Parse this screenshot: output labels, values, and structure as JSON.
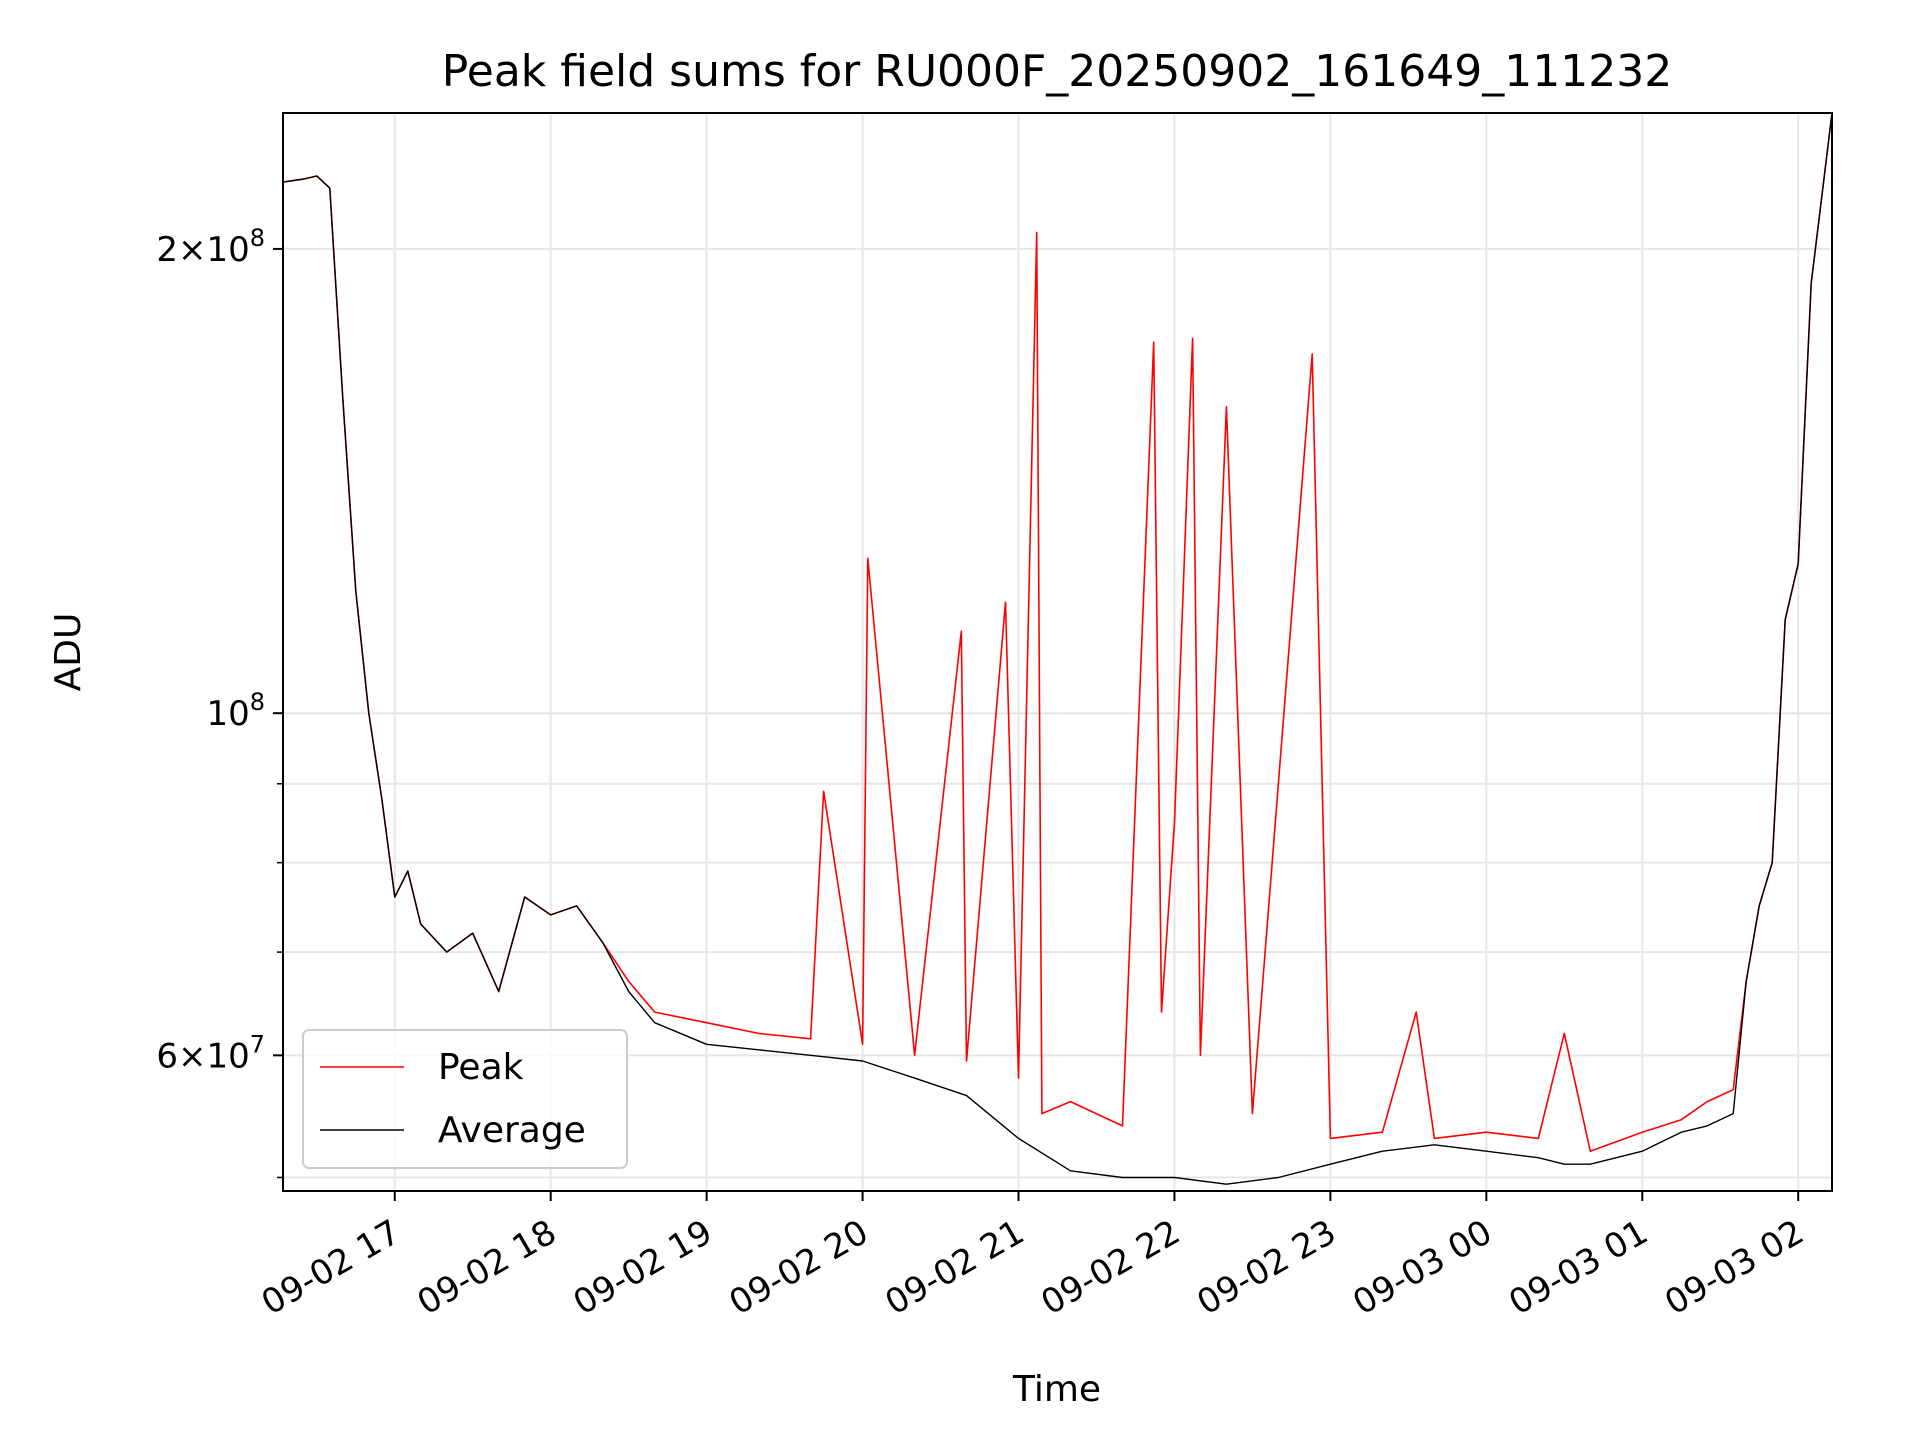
{
  "chart_data": {
    "type": "line",
    "title": "Peak field sums for RU000F_20250902_161649_111232",
    "xlabel": "Time",
    "ylabel": "ADU",
    "y_scale": "log",
    "ylim": [
      49000000,
      245000000
    ],
    "xlim": [
      "2025-09-02 16:17",
      "2025-09-03 02:13"
    ],
    "grid": true,
    "legend": "lower-left",
    "x_ticks": [
      "09-02 17",
      "09-02 18",
      "09-02 19",
      "09-02 20",
      "09-02 21",
      "09-02 22",
      "09-02 23",
      "09-03 00",
      "09-03 01",
      "09-03 02"
    ],
    "x_tick_times": [
      "2025-09-02 17:00",
      "2025-09-02 18:00",
      "2025-09-02 19:00",
      "2025-09-02 20:00",
      "2025-09-02 21:00",
      "2025-09-02 22:00",
      "2025-09-02 23:00",
      "2025-09-03 00:00",
      "2025-09-03 01:00",
      "2025-09-03 02:00"
    ],
    "y_major_ticks": [
      {
        "value": 60000000,
        "mantissa": "6",
        "exponent": "7"
      },
      {
        "value": 100000000,
        "mantissa": "",
        "exponent": "8"
      },
      {
        "value": 200000000,
        "mantissa": "2",
        "exponent": "8"
      }
    ],
    "y_minor_ticks": [
      50000000,
      70000000,
      80000000,
      90000000
    ],
    "series": [
      {
        "name": "Peak",
        "color": "#ff0000",
        "x": [
          "2025-09-02 16:17",
          "2025-09-02 16:25",
          "2025-09-02 16:30",
          "2025-09-02 16:35",
          "2025-09-02 16:40",
          "2025-09-02 16:45",
          "2025-09-02 16:50",
          "2025-09-02 16:55",
          "2025-09-02 17:00",
          "2025-09-02 17:05",
          "2025-09-02 17:10",
          "2025-09-02 17:20",
          "2025-09-02 17:30",
          "2025-09-02 17:40",
          "2025-09-02 17:50",
          "2025-09-02 18:00",
          "2025-09-02 18:10",
          "2025-09-02 18:20",
          "2025-09-02 18:30",
          "2025-09-02 18:40",
          "2025-09-02 19:00",
          "2025-09-02 19:20",
          "2025-09-02 19:40",
          "2025-09-02 19:45",
          "2025-09-02 20:00",
          "2025-09-02 20:02",
          "2025-09-02 20:20",
          "2025-09-02 20:38",
          "2025-09-02 20:40",
          "2025-09-02 20:55",
          "2025-09-02 21:00",
          "2025-09-02 21:07",
          "2025-09-02 21:09",
          "2025-09-02 21:20",
          "2025-09-02 21:40",
          "2025-09-02 21:52",
          "2025-09-02 21:55",
          "2025-09-02 22:00",
          "2025-09-02 22:07",
          "2025-09-02 22:10",
          "2025-09-02 22:20",
          "2025-09-02 22:30",
          "2025-09-02 22:53",
          "2025-09-02 23:00",
          "2025-09-02 23:20",
          "2025-09-02 23:33",
          "2025-09-02 23:40",
          "2025-09-03 00:00",
          "2025-09-03 00:20",
          "2025-09-03 00:30",
          "2025-09-03 00:40",
          "2025-09-03 01:00",
          "2025-09-03 01:15",
          "2025-09-03 01:25",
          "2025-09-03 01:35",
          "2025-09-03 01:40",
          "2025-09-03 01:45",
          "2025-09-03 01:50",
          "2025-09-03 01:55",
          "2025-09-03 02:00",
          "2025-09-03 02:05",
          "2025-09-03 02:13"
        ],
        "y": [
          221000000,
          222000000,
          223000000,
          219000000,
          160000000,
          120000000,
          100000000,
          88000000,
          76000000,
          79000000,
          73000000,
          70000000,
          72000000,
          66000000,
          76000000,
          74000000,
          75000000,
          71000000,
          67000000,
          64000000,
          63000000,
          62000000,
          61500000,
          89000000,
          61000000,
          126000000,
          60000000,
          113000000,
          59500000,
          118000000,
          58000000,
          205000000,
          55000000,
          56000000,
          54000000,
          174000000,
          64000000,
          85000000,
          175000000,
          60000000,
          158000000,
          55000000,
          171000000,
          53000000,
          53500000,
          64000000,
          53000000,
          53500000,
          53000000,
          62000000,
          52000000,
          53500000,
          54500000,
          56000000,
          57000000,
          67000000,
          75000000,
          80000000,
          115000000,
          125000000,
          190000000,
          245000000
        ]
      },
      {
        "name": "Average",
        "color": "#000000",
        "x": [
          "2025-09-02 16:17",
          "2025-09-02 16:25",
          "2025-09-02 16:30",
          "2025-09-02 16:35",
          "2025-09-02 16:40",
          "2025-09-02 16:45",
          "2025-09-02 16:50",
          "2025-09-02 16:55",
          "2025-09-02 17:00",
          "2025-09-02 17:05",
          "2025-09-02 17:10",
          "2025-09-02 17:20",
          "2025-09-02 17:30",
          "2025-09-02 17:40",
          "2025-09-02 17:50",
          "2025-09-02 18:00",
          "2025-09-02 18:10",
          "2025-09-02 18:20",
          "2025-09-02 18:30",
          "2025-09-02 18:40",
          "2025-09-02 19:00",
          "2025-09-02 19:20",
          "2025-09-02 19:40",
          "2025-09-02 20:00",
          "2025-09-02 20:20",
          "2025-09-02 20:40",
          "2025-09-02 21:00",
          "2025-09-02 21:20",
          "2025-09-02 21:40",
          "2025-09-02 22:00",
          "2025-09-02 22:20",
          "2025-09-02 22:40",
          "2025-09-02 23:00",
          "2025-09-02 23:20",
          "2025-09-02 23:40",
          "2025-09-03 00:00",
          "2025-09-03 00:20",
          "2025-09-03 00:30",
          "2025-09-03 00:40",
          "2025-09-03 01:00",
          "2025-09-03 01:15",
          "2025-09-03 01:25",
          "2025-09-03 01:35",
          "2025-09-03 01:40",
          "2025-09-03 01:45",
          "2025-09-03 01:50",
          "2025-09-03 01:55",
          "2025-09-03 02:00",
          "2025-09-03 02:05",
          "2025-09-03 02:13"
        ],
        "y": [
          221000000,
          222000000,
          223000000,
          219000000,
          160000000,
          120000000,
          100000000,
          88000000,
          76000000,
          79000000,
          73000000,
          70000000,
          72000000,
          66000000,
          76000000,
          74000000,
          75000000,
          71000000,
          66000000,
          63000000,
          61000000,
          60500000,
          60000000,
          59500000,
          58000000,
          56500000,
          53000000,
          50500000,
          50000000,
          50000000,
          49500000,
          50000000,
          51000000,
          52000000,
          52500000,
          52000000,
          51500000,
          51000000,
          51000000,
          52000000,
          53500000,
          54000000,
          55000000,
          67000000,
          75000000,
          80000000,
          115000000,
          125000000,
          190000000,
          245000000
        ]
      }
    ]
  }
}
